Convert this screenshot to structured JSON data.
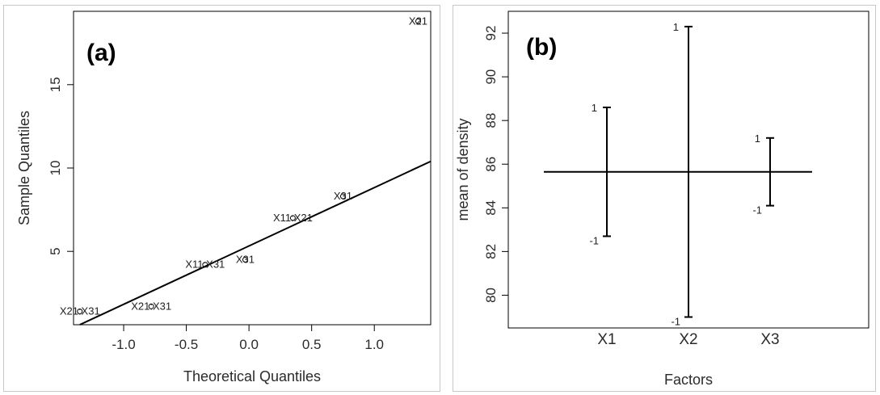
{
  "chart_data": [
    {
      "type": "scatter",
      "panel_label": "(a)",
      "xlabel": "Theoretical Quantiles",
      "ylabel": "Sample Quantiles",
      "xlim": [
        -1.4,
        1.45
      ],
      "ylim": [
        0.6,
        19.4
      ],
      "x_ticks": [
        -1.0,
        -0.5,
        0.0,
        0.5,
        1.0
      ],
      "x_tick_labels": [
        "-1.0",
        "-0.5",
        "0.0",
        "0.5",
        "1.0"
      ],
      "y_ticks": [
        5,
        10,
        15
      ],
      "y_tick_labels": [
        "5",
        "10",
        "15"
      ],
      "points": [
        {
          "label": "X21:X31",
          "x": -1.35,
          "y": 1.4
        },
        {
          "label": "X21:X31",
          "x": -0.78,
          "y": 1.7
        },
        {
          "label": "X11:X31",
          "x": -0.35,
          "y": 4.2
        },
        {
          "label": "X31",
          "x": -0.03,
          "y": 4.5
        },
        {
          "label": "X11:X21",
          "x": 0.35,
          "y": 7.0
        },
        {
          "label": "X31",
          "x": 0.75,
          "y": 8.3
        },
        {
          "label": "X21",
          "x": 1.35,
          "y": 18.8
        }
      ],
      "reference_line": {
        "from": [
          -1.35,
          0.6
        ],
        "to": [
          1.45,
          10.4
        ]
      }
    },
    {
      "type": "error-bar",
      "panel_label": "(b)",
      "xlabel": "Factors",
      "ylabel": "mean of density",
      "categories": [
        "X1",
        "X2",
        "X3"
      ],
      "ylim": [
        78.5,
        93.0
      ],
      "y_ticks": [
        80,
        82,
        84,
        86,
        88,
        90,
        92
      ],
      "y_tick_labels": [
        "80",
        "82",
        "84",
        "86",
        "88",
        "90",
        "92"
      ],
      "grand_mean": 85.65,
      "factors": [
        {
          "name": "X1",
          "low_label": "-1",
          "high_label": "1",
          "low": 82.7,
          "high": 88.6
        },
        {
          "name": "X2",
          "low_label": "-1",
          "high_label": "1",
          "low": 79.0,
          "high": 92.3
        },
        {
          "name": "X3",
          "low_label": "-1",
          "high_label": "1",
          "low": 84.1,
          "high": 87.2
        }
      ]
    }
  ]
}
